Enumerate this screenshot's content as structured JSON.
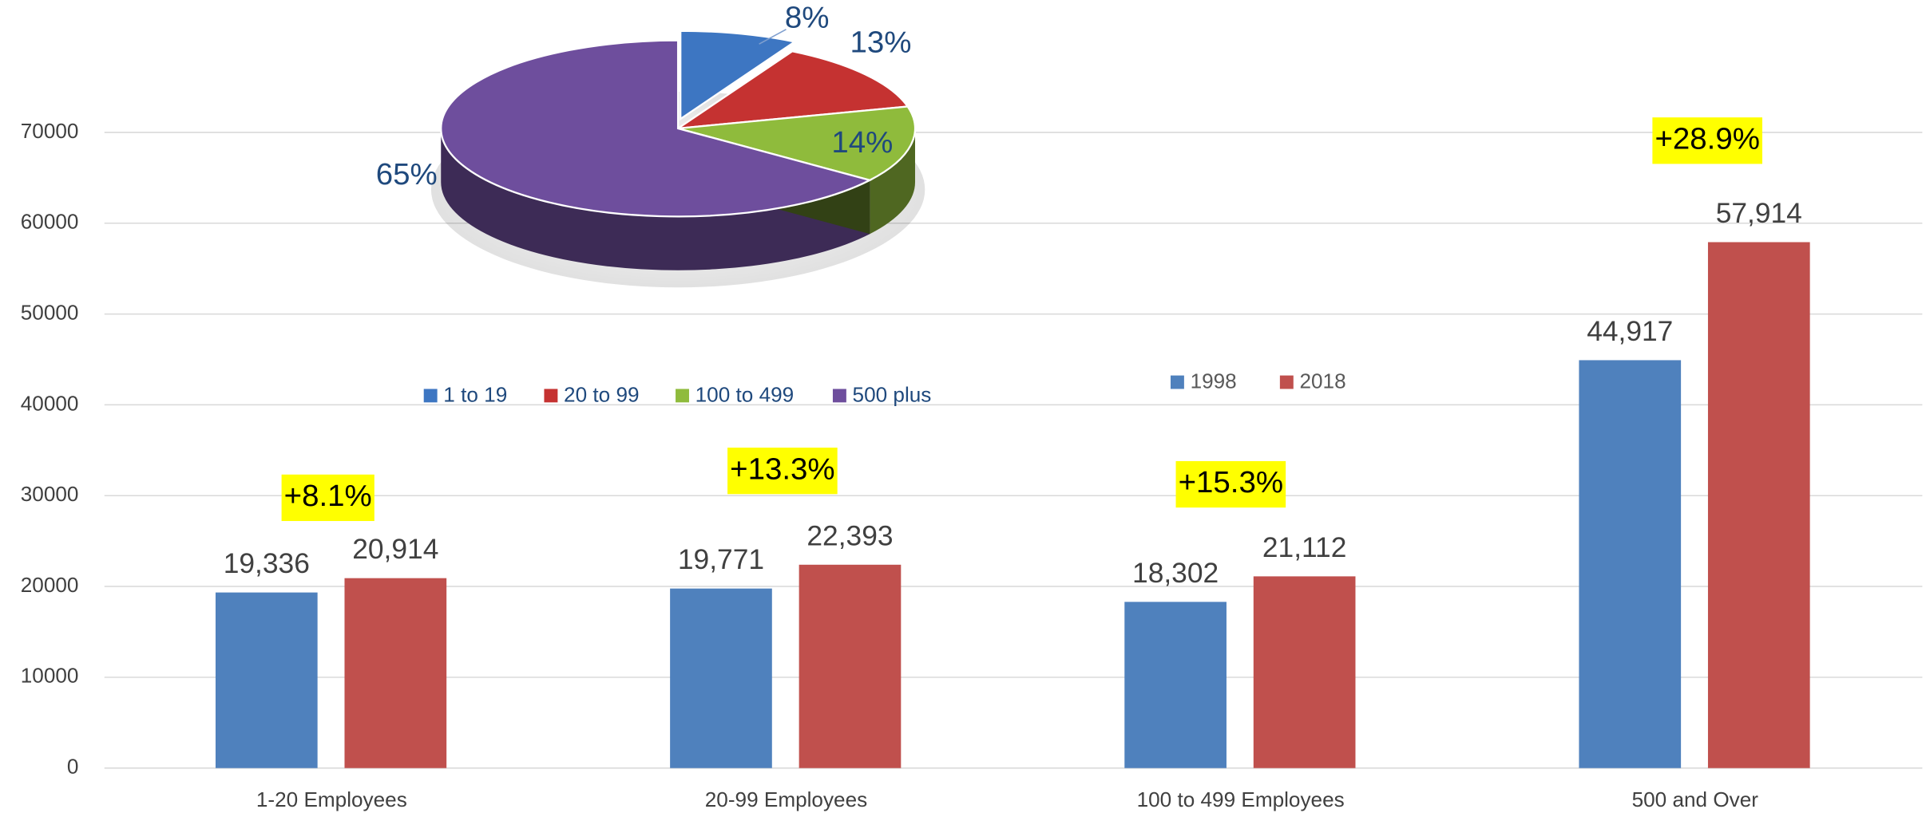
{
  "chart_data": [
    {
      "type": "bar",
      "categories": [
        "1-20 Employees",
        "20-99 Employees",
        "100 to 499 Employees",
        "500 and Over"
      ],
      "series": [
        {
          "name": "1998",
          "color": "#4f81bd",
          "values": [
            19336,
            19771,
            18302,
            44917
          ],
          "value_labels": [
            "19,336",
            "19,771",
            "18,302",
            "44,917"
          ]
        },
        {
          "name": "2018",
          "color": "#c0504d",
          "values": [
            20914,
            22393,
            21112,
            57914
          ],
          "value_labels": [
            "20,914",
            "22,393",
            "21,112",
            "57,914"
          ]
        }
      ],
      "annotations": [
        "+8.1%",
        "+13.3%",
        "+15.3%",
        "+28.9%"
      ],
      "ylim": [
        0,
        80000
      ],
      "yticks": [
        0,
        10000,
        20000,
        30000,
        40000,
        50000,
        60000,
        70000
      ],
      "grid": true
    },
    {
      "type": "pie",
      "categories": [
        "1 to 19",
        "20 to 99",
        "100 to 499",
        "500 plus"
      ],
      "values": [
        8,
        13,
        14,
        65
      ],
      "value_labels": [
        "8%",
        "13%",
        "14%",
        "65%"
      ],
      "colors": [
        "#3d76c2",
        "#c53231",
        "#8fbb3c",
        "#6e4e9d"
      ]
    }
  ]
}
